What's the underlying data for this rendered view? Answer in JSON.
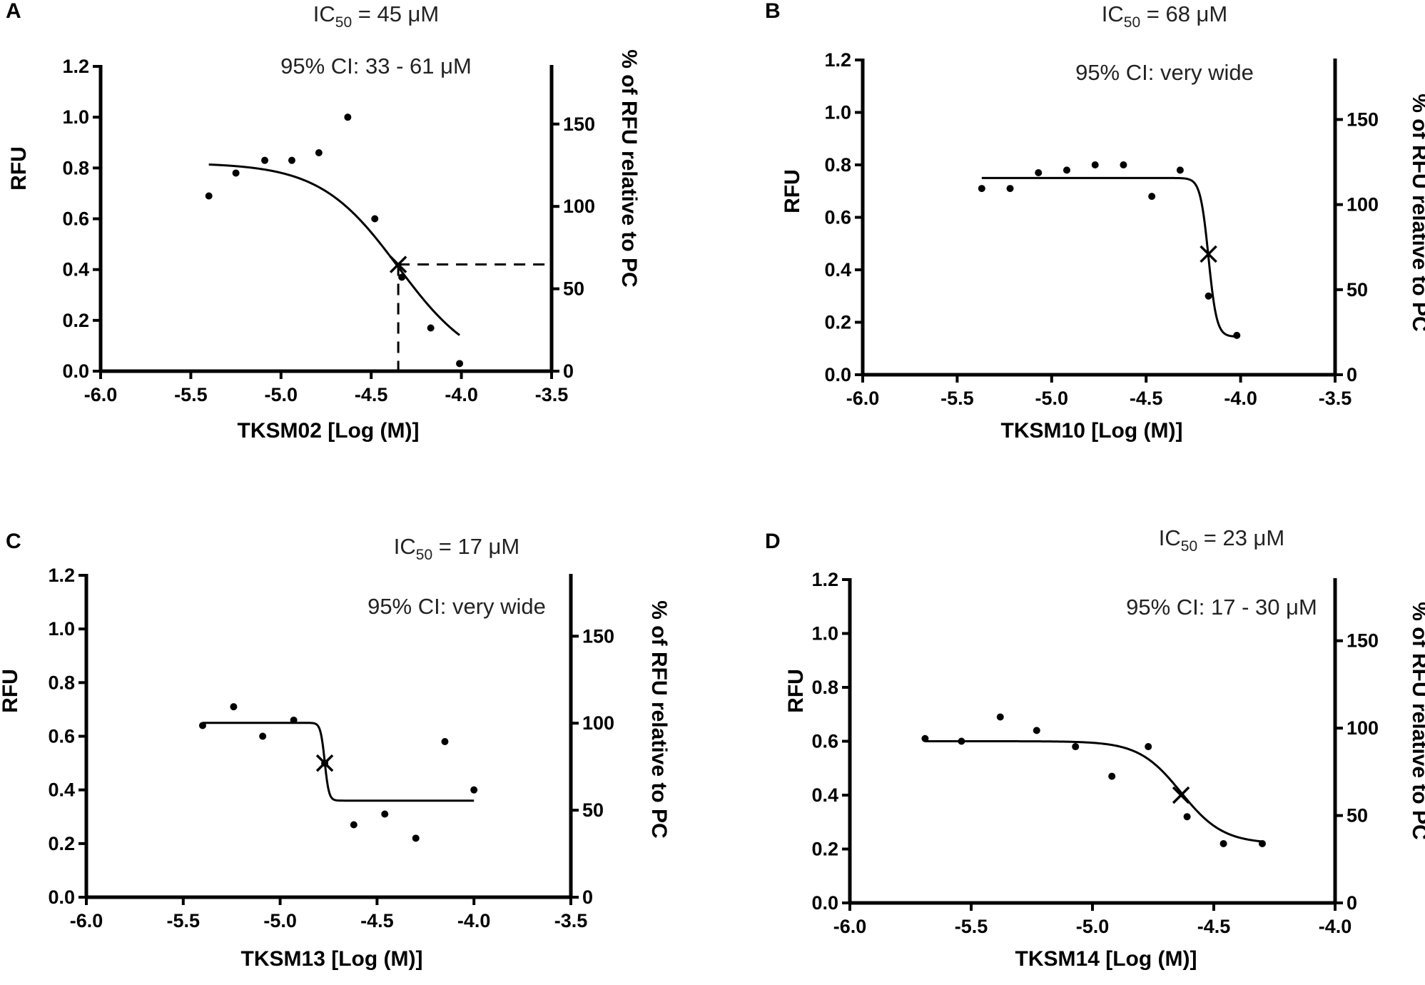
{
  "chart_data": [
    {
      "type": "scatter",
      "panel_label": "A",
      "ic50_prefix": "IC",
      "ic50_subscript": "50",
      "ic50_value": " = 45 μM",
      "ci_text": "95% CI: 33 - 61 μM",
      "ylabel": "RFU",
      "y2label": "% of RFU relative to PC",
      "xlabel": "TKSM02  [Log (M)]",
      "xlim": [
        -6.0,
        -3.5
      ],
      "ylim": [
        0,
        1.2
      ],
      "y2lim": [
        0,
        185
      ],
      "x_ticks": [
        "-6.0",
        "-5.5",
        "-5.0",
        "-4.5",
        "-4.0",
        "-3.5"
      ],
      "y_ticks": [
        "0.0",
        "0.2",
        "0.4",
        "0.6",
        "0.8",
        "1.0",
        "1.2"
      ],
      "y2_ticks": [
        "0",
        "50",
        "100",
        "150"
      ],
      "points": [
        {
          "x": -5.4,
          "y": 0.69
        },
        {
          "x": -5.25,
          "y": 0.78
        },
        {
          "x": -5.09,
          "y": 0.83
        },
        {
          "x": -4.94,
          "y": 0.83
        },
        {
          "x": -4.79,
          "y": 0.86
        },
        {
          "x": -4.63,
          "y": 1.0
        },
        {
          "x": -4.48,
          "y": 0.6
        },
        {
          "x": -4.33,
          "y": 0.37
        },
        {
          "x": -4.17,
          "y": 0.17
        },
        {
          "x": -4.01,
          "y": 0.03
        }
      ],
      "fit": {
        "top": 0.82,
        "bottom": 0.0,
        "logIC50": -4.35,
        "hill": -2.0,
        "x_start": -5.4,
        "x_end": -4.01
      },
      "ic50_marker": {
        "x": -4.35,
        "y": 0.42
      },
      "dashed_guides": true
    },
    {
      "type": "scatter",
      "panel_label": "B",
      "ic50_prefix": "IC",
      "ic50_subscript": "50",
      "ic50_value": " = 68 μM",
      "ci_text": "95% CI: very wide",
      "ylabel": "RFU",
      "y2label": "% of RFU relative to PC",
      "xlabel": "TKSM10  [Log (M)]",
      "xlim": [
        -6.0,
        -3.5
      ],
      "ylim": [
        0,
        1.2
      ],
      "y2lim": [
        0,
        185
      ],
      "x_ticks": [
        "-6.0",
        "-5.5",
        "-5.0",
        "-4.5",
        "-4.0",
        "-3.5"
      ],
      "y_ticks": [
        "0.0",
        "0.2",
        "0.4",
        "0.6",
        "0.8",
        "1.0",
        "1.2"
      ],
      "y2_ticks": [
        "0",
        "50",
        "100",
        "150"
      ],
      "points": [
        {
          "x": -5.37,
          "y": 0.71
        },
        {
          "x": -5.22,
          "y": 0.71
        },
        {
          "x": -5.07,
          "y": 0.77
        },
        {
          "x": -4.92,
          "y": 0.78
        },
        {
          "x": -4.77,
          "y": 0.8
        },
        {
          "x": -4.62,
          "y": 0.8
        },
        {
          "x": -4.47,
          "y": 0.68
        },
        {
          "x": -4.32,
          "y": 0.78
        },
        {
          "x": -4.17,
          "y": 0.3
        },
        {
          "x": -4.02,
          "y": 0.15
        }
      ],
      "fit": {
        "top": 0.75,
        "bottom": 0.145,
        "logIC50": -4.17,
        "hill": -20.0,
        "x_start": -5.37,
        "x_end": -4.02
      },
      "ic50_marker": {
        "x": -4.17,
        "y": 0.46
      },
      "dashed_guides": false
    },
    {
      "type": "scatter",
      "panel_label": "C",
      "ic50_prefix": "IC",
      "ic50_subscript": "50",
      "ic50_value": " = 17 μM",
      "ci_text": "95% CI: very wide",
      "ylabel": "RFU",
      "y2label": "% of RFU relative to PC",
      "xlabel": "TKSM13  [Log (M)]",
      "xlim": [
        -6.0,
        -3.5
      ],
      "ylim": [
        0,
        1.2
      ],
      "y2lim": [
        0,
        185
      ],
      "x_ticks": [
        "-6.0",
        "-5.5",
        "-5.0",
        "-4.5",
        "-4.0",
        "-3.5"
      ],
      "y_ticks": [
        "0.0",
        "0.2",
        "0.4",
        "0.6",
        "0.8",
        "1.0",
        "1.2"
      ],
      "y2_ticks": [
        "0",
        "50",
        "100",
        "150"
      ],
      "points": [
        {
          "x": -5.4,
          "y": 0.64
        },
        {
          "x": -5.24,
          "y": 0.71
        },
        {
          "x": -5.09,
          "y": 0.6
        },
        {
          "x": -4.93,
          "y": 0.66
        },
        {
          "x": -4.77,
          "y": 0.5
        },
        {
          "x": -4.62,
          "y": 0.27
        },
        {
          "x": -4.46,
          "y": 0.31
        },
        {
          "x": -4.3,
          "y": 0.22
        },
        {
          "x": -4.15,
          "y": 0.58
        },
        {
          "x": -4.0,
          "y": 0.4
        }
      ],
      "fit": {
        "top": 0.65,
        "bottom": 0.36,
        "logIC50": -4.77,
        "hill": -40.0,
        "x_start": -5.4,
        "x_end": -4.0
      },
      "ic50_marker": {
        "x": -4.77,
        "y": 0.5
      },
      "dashed_guides": false
    },
    {
      "type": "scatter",
      "panel_label": "D",
      "ic50_prefix": "IC",
      "ic50_subscript": "50",
      "ic50_value": " = 23 μM",
      "ci_text": "95% CI: 17 - 30 μM",
      "ylabel": "RFU",
      "y2label": "% of RFU relative to PC",
      "xlabel": "TKSM14  [Log (M)]",
      "xlim": [
        -6.0,
        -4.0
      ],
      "ylim": [
        0,
        1.2
      ],
      "y2lim": [
        0,
        185
      ],
      "x_ticks": [
        "-6.0",
        "-5.5",
        "-5.0",
        "-4.5",
        "-4.0"
      ],
      "y_ticks": [
        "0.0",
        "0.2",
        "0.4",
        "0.6",
        "0.8",
        "1.0",
        "1.2"
      ],
      "y2_ticks": [
        "0",
        "50",
        "100",
        "150"
      ],
      "points": [
        {
          "x": -5.69,
          "y": 0.61
        },
        {
          "x": -5.54,
          "y": 0.6
        },
        {
          "x": -5.38,
          "y": 0.69
        },
        {
          "x": -5.23,
          "y": 0.64
        },
        {
          "x": -5.07,
          "y": 0.58
        },
        {
          "x": -4.92,
          "y": 0.47
        },
        {
          "x": -4.77,
          "y": 0.58
        },
        {
          "x": -4.61,
          "y": 0.32
        },
        {
          "x": -4.46,
          "y": 0.22
        },
        {
          "x": -4.3,
          "y": 0.22
        }
      ],
      "fit": {
        "top": 0.6,
        "bottom": 0.22,
        "logIC50": -4.635,
        "hill": -5.0,
        "x_start": -5.69,
        "x_end": -4.3
      },
      "ic50_marker": {
        "x": -4.635,
        "y": 0.4
      },
      "dashed_guides": false
    }
  ]
}
